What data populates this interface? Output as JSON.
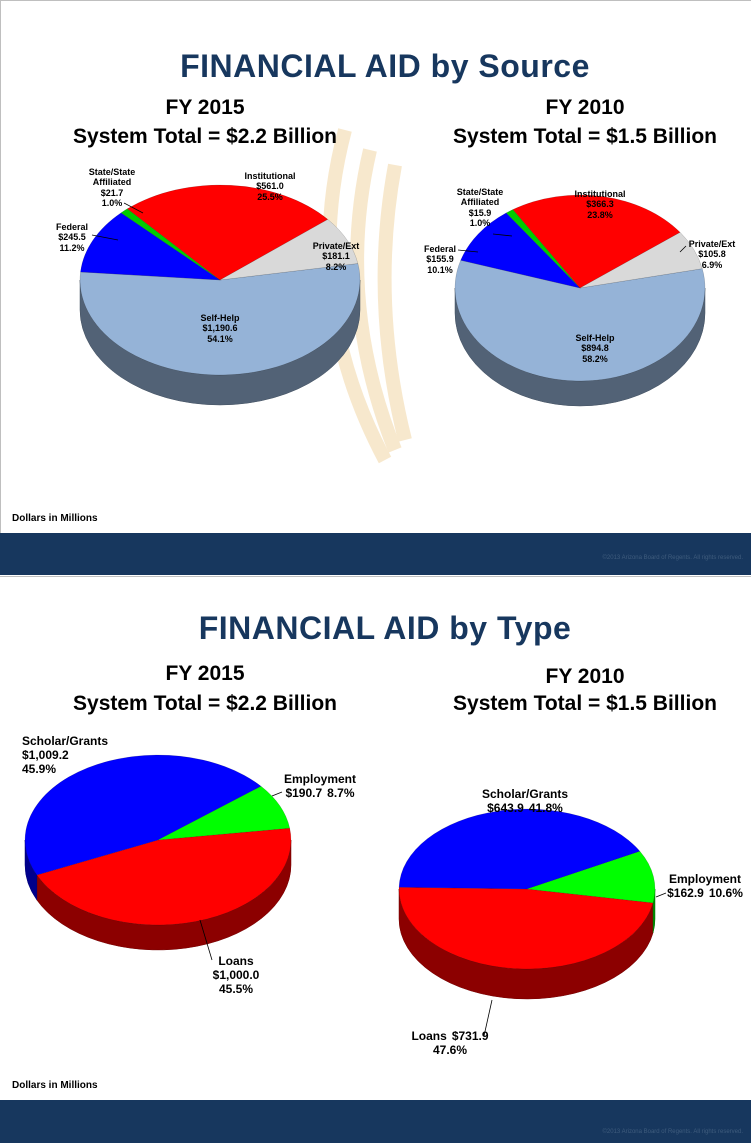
{
  "slides": [
    {
      "title": "FINANCIAL AID by Source",
      "note": "Dollars in Millions",
      "footer": "©2013 Arizona Board of Regents. All rights reserved."
    },
    {
      "title": "FINANCIAL AID by Type",
      "note": "Dollars in Millions",
      "footer": "©2013 Arizona Board of Regents. All rights reserved."
    }
  ],
  "chart_data": [
    {
      "type": "pie",
      "title": "FY 2015",
      "subtitle": "System Total = $2.2 Billion",
      "categories": [
        "Self-Help",
        "Federal",
        "State/State Affiliated",
        "Institutional",
        "Private/Ext"
      ],
      "values": [
        1190.6,
        245.5,
        21.7,
        561.0,
        181.1
      ],
      "value_labels": [
        "$1,190.6",
        "$245.5",
        "$21.7",
        "$561.0",
        "$181.1"
      ],
      "shares": [
        54.1,
        11.2,
        1.0,
        25.5,
        8.2
      ],
      "share_labels": [
        "54.1%",
        "11.2%",
        "1.0%",
        "25.5%",
        "8.2%"
      ],
      "colors": [
        "#95b3d7",
        "#0000ff",
        "#00cc00",
        "#ff0000",
        "#d9d9d9"
      ]
    },
    {
      "type": "pie",
      "title": "FY 2010",
      "subtitle": "System Total = $1.5 Billion",
      "categories": [
        "Self-Help",
        "Federal",
        "State/State Affiliated",
        "Institutional",
        "Private/Ext"
      ],
      "values": [
        894.8,
        155.9,
        15.9,
        366.3,
        105.8
      ],
      "value_labels": [
        "$894.8",
        "$155.9",
        "$15.9",
        "$366.3",
        "$105.8"
      ],
      "shares": [
        58.2,
        10.1,
        1.0,
        23.8,
        6.9
      ],
      "share_labels": [
        "58.2%",
        "10.1%",
        "1.0%",
        "23.8%",
        "6.9%"
      ],
      "colors": [
        "#95b3d7",
        "#0000ff",
        "#00cc00",
        "#ff0000",
        "#d9d9d9"
      ]
    },
    {
      "type": "pie",
      "title": "FY 2015",
      "subtitle": "System Total = $2.2 Billion",
      "categories": [
        "Loans",
        "Scholar/Grants",
        "Employment"
      ],
      "values": [
        1000.0,
        1009.2,
        190.7
      ],
      "value_labels": [
        "$1,000.0",
        "$1,009.2",
        "$190.7"
      ],
      "shares": [
        45.5,
        45.9,
        8.7
      ],
      "share_labels": [
        "45.5%",
        "45.9%",
        "8.7%"
      ],
      "colors": [
        "#ff0000",
        "#0000ff",
        "#00ff00"
      ]
    },
    {
      "type": "pie",
      "title": "FY 2010",
      "subtitle": "System Total = $1.5 Billion",
      "categories": [
        "Loans",
        "Scholar/Grants",
        "Employment"
      ],
      "values": [
        731.9,
        643.9,
        162.9
      ],
      "value_labels": [
        "$731.9",
        "$643.9",
        "$162.9"
      ],
      "shares": [
        47.6,
        41.8,
        10.6
      ],
      "share_labels": [
        "47.6%",
        "41.8%",
        "10.6%"
      ],
      "colors": [
        "#ff0000",
        "#0000ff",
        "#00ff00"
      ]
    }
  ]
}
